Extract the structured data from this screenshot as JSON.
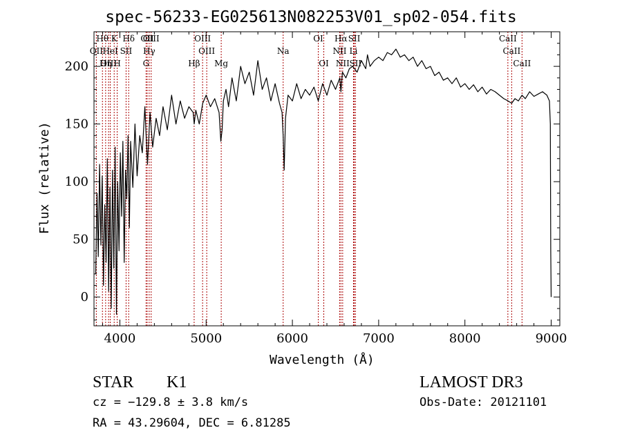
{
  "chart_data": {
    "type": "line",
    "title": "spec-56233-EG025613N082253V01_sp02-054.fits",
    "xlabel": "Wavelength (Å)",
    "ylabel": "Flux (relative)",
    "xlim": [
      3700,
      9100
    ],
    "ylim": [
      -25,
      230
    ],
    "xticks": [
      4000,
      5000,
      6000,
      7000,
      8000,
      9000
    ],
    "yticks": [
      0,
      50,
      100,
      150,
      200
    ],
    "xtick_labels": [
      "4000",
      "5000",
      "6000",
      "7000",
      "8000",
      "9000"
    ],
    "ytick_labels": [
      "0",
      "50",
      "100",
      "150",
      "200"
    ],
    "line_color": "#000000",
    "marker_color": "#aa0000",
    "series": [
      {
        "name": "flux",
        "x": [
          3720,
          3735,
          3750,
          3765,
          3780,
          3795,
          3810,
          3825,
          3840,
          3855,
          3870,
          3885,
          3900,
          3915,
          3930,
          3945,
          3960,
          3975,
          3990,
          4005,
          4020,
          4035,
          4050,
          4065,
          4080,
          4095,
          4110,
          4125,
          4150,
          4175,
          4200,
          4230,
          4260,
          4290,
          4320,
          4350,
          4380,
          4420,
          4460,
          4500,
          4550,
          4600,
          4650,
          4700,
          4750,
          4800,
          4850,
          4862,
          4880,
          4920,
          4960,
          5000,
          5050,
          5100,
          5150,
          5170,
          5185,
          5200,
          5230,
          5260,
          5300,
          5350,
          5400,
          5450,
          5500,
          5550,
          5600,
          5650,
          5700,
          5750,
          5800,
          5850,
          5880,
          5893,
          5905,
          5920,
          5950,
          6000,
          6050,
          6100,
          6150,
          6200,
          6250,
          6300,
          6350,
          6400,
          6450,
          6500,
          6550,
          6563,
          6580,
          6620,
          6660,
          6700,
          6750,
          6800,
          6850,
          6870,
          6900,
          6950,
          7000,
          7050,
          7100,
          7150,
          7200,
          7250,
          7300,
          7350,
          7400,
          7450,
          7500,
          7550,
          7600,
          7650,
          7700,
          7750,
          7800,
          7850,
          7900,
          7950,
          8000,
          8050,
          8100,
          8150,
          8200,
          8250,
          8300,
          8350,
          8400,
          8450,
          8500,
          8542,
          8580,
          8620,
          8662,
          8700,
          8750,
          8800,
          8850,
          8900,
          8950,
          8980,
          8990,
          8995,
          9000
        ],
        "y": [
          20,
          90,
          35,
          115,
          45,
          105,
          10,
          80,
          30,
          120,
          5,
          95,
          -10,
          110,
          25,
          130,
          -15,
          100,
          40,
          125,
          70,
          135,
          30,
          110,
          85,
          140,
          60,
          135,
          95,
          150,
          105,
          140,
          125,
          165,
          115,
          160,
          130,
          155,
          140,
          165,
          145,
          175,
          150,
          170,
          155,
          165,
          160,
          150,
          162,
          150,
          168,
          175,
          165,
          172,
          160,
          135,
          145,
          170,
          180,
          165,
          190,
          170,
          200,
          185,
          195,
          175,
          205,
          180,
          190,
          170,
          185,
          168,
          160,
          140,
          110,
          155,
          175,
          170,
          185,
          172,
          180,
          175,
          182,
          170,
          185,
          175,
          188,
          180,
          190,
          178,
          195,
          190,
          198,
          200,
          195,
          205,
          198,
          210,
          200,
          205,
          208,
          205,
          212,
          210,
          215,
          208,
          210,
          205,
          208,
          200,
          205,
          198,
          200,
          192,
          195,
          188,
          190,
          185,
          190,
          182,
          185,
          180,
          184,
          178,
          182,
          176,
          180,
          178,
          175,
          172,
          170,
          168,
          172,
          170,
          175,
          172,
          178,
          174,
          176,
          178,
          175,
          170,
          150,
          40,
          0
        ]
      }
    ],
    "lines": [
      {
        "label": "Hθ",
        "x": 3798,
        "row": 1
      },
      {
        "label": "OII",
        "x": 3727,
        "row": 2
      },
      {
        "label": "OIII",
        "x": 3869,
        "row": 3
      },
      {
        "label": "Hη",
        "x": 3835,
        "row": 3
      },
      {
        "label": "K",
        "x": 3934,
        "row": 1
      },
      {
        "label": "HeI",
        "x": 3889,
        "row": 2
      },
      {
        "label": "H",
        "x": 3969,
        "row": 3
      },
      {
        "label": "Hδ",
        "x": 4102,
        "row": 1
      },
      {
        "label": "SII",
        "x": 4072,
        "row": 2
      },
      {
        "label": "OII",
        "x": 4317,
        "row": 1
      },
      {
        "label": "Hγ",
        "x": 4340,
        "row": 2
      },
      {
        "label": "G",
        "x": 4304,
        "row": 3
      },
      {
        "label": "OIII",
        "x": 4363,
        "row": 0
      },
      {
        "label": "Hβ",
        "x": 4861,
        "row": 3
      },
      {
        "label": "OIII",
        "x": 4959,
        "row": 1
      },
      {
        "label": "OIII",
        "x": 5007,
        "row": 2
      },
      {
        "label": "Mg",
        "x": 5175,
        "row": 3
      },
      {
        "label": "Na",
        "x": 5893,
        "row": 2
      },
      {
        "label": "OI",
        "x": 6300,
        "row": 1
      },
      {
        "label": "OI",
        "x": 6364,
        "row": 3
      },
      {
        "label": "Hα",
        "x": 6563,
        "row": 1
      },
      {
        "label": "NII",
        "x": 6548,
        "row": 2
      },
      {
        "label": "NII",
        "x": 6583,
        "row": 3
      },
      {
        "label": "SII",
        "x": 6717,
        "row": 1
      },
      {
        "label": "Li",
        "x": 6708,
        "row": 2
      },
      {
        "label": "SII",
        "x": 6731,
        "row": 3
      },
      {
        "label": "CaII",
        "x": 8498,
        "row": 1
      },
      {
        "label": "CaII",
        "x": 8542,
        "row": 2
      },
      {
        "label": "CaII",
        "x": 8662,
        "row": 3
      }
    ]
  },
  "info": {
    "object_class": "STAR",
    "subclass": "K1",
    "survey": "LAMOST DR3",
    "cz": "cz = −129.8 ± 3.8 km/s",
    "obs_date": "Obs-Date: 20121101",
    "coords": "RA =  43.29604, DEC =   6.81285"
  }
}
